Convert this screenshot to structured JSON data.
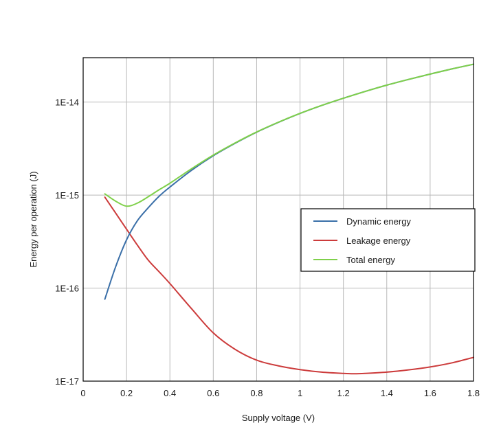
{
  "chart_data": {
    "type": "line",
    "title": "",
    "xlabel": "Supply voltage (V)",
    "ylabel": "Energy per operation (J)",
    "xlim": [
      0,
      1.8
    ],
    "ylim": [
      1e-17,
      3e-14
    ],
    "yscale": "log",
    "grid": true,
    "legend_position": "center-right",
    "x_ticks": [
      {
        "value": 0,
        "label": "0"
      },
      {
        "value": 0.2,
        "label": "0.2"
      },
      {
        "value": 0.4,
        "label": "0.4"
      },
      {
        "value": 0.6,
        "label": "0.6"
      },
      {
        "value": 0.8,
        "label": "0.8"
      },
      {
        "value": 1.0,
        "label": "1"
      },
      {
        "value": 1.2,
        "label": "1.2"
      },
      {
        "value": 1.4,
        "label": "1.4"
      },
      {
        "value": 1.6,
        "label": "1.6"
      },
      {
        "value": 1.8,
        "label": "1.8"
      }
    ],
    "y_ticks": [
      {
        "value": 1e-17,
        "label": "1E-17"
      },
      {
        "value": 1e-16,
        "label": "1E-16"
      },
      {
        "value": 1e-15,
        "label": "1E-15"
      },
      {
        "value": 1e-14,
        "label": "1E-14"
      }
    ],
    "series": [
      {
        "name": "Dynamic energy",
        "color": "#3a6fa8",
        "x": [
          0.1,
          0.15,
          0.2,
          0.25,
          0.3,
          0.35,
          0.4,
          0.5,
          0.6,
          0.7,
          0.8,
          0.9,
          1.0,
          1.1,
          1.2,
          1.3,
          1.4,
          1.5,
          1.6,
          1.7,
          1.8
        ],
        "y": [
          7.6e-17,
          1.7e-16,
          3.3e-16,
          5.3e-16,
          7.3e-16,
          9.7e-16,
          1.22e-15,
          1.85e-15,
          2.65e-15,
          3.6e-15,
          4.75e-15,
          6.05e-15,
          7.55e-15,
          9.2e-15,
          1.1e-14,
          1.3e-14,
          1.52e-14,
          1.75e-14,
          2e-14,
          2.27e-14,
          2.55e-14
        ]
      },
      {
        "name": "Leakage energy",
        "color": "#cc3b3b",
        "x": [
          0.1,
          0.15,
          0.2,
          0.25,
          0.3,
          0.35,
          0.4,
          0.5,
          0.6,
          0.7,
          0.8,
          0.9,
          1.0,
          1.1,
          1.2,
          1.25,
          1.3,
          1.4,
          1.5,
          1.6,
          1.7,
          1.8
        ],
        "y": [
          9.5e-16,
          6.4e-16,
          4.3e-16,
          2.9e-16,
          2e-16,
          1.5e-16,
          1.12e-16,
          6e-17,
          3.3e-17,
          2.2e-17,
          1.68e-17,
          1.46e-17,
          1.33e-17,
          1.25e-17,
          1.21e-17,
          1.2e-17,
          1.21e-17,
          1.25e-17,
          1.32e-17,
          1.42e-17,
          1.57e-17,
          1.8e-17
        ]
      },
      {
        "name": "Total energy",
        "color": "#7fd04a",
        "x": [
          0.1,
          0.15,
          0.2,
          0.25,
          0.3,
          0.35,
          0.4,
          0.5,
          0.6,
          0.7,
          0.8,
          0.9,
          1.0,
          1.1,
          1.2,
          1.3,
          1.4,
          1.5,
          1.6,
          1.7,
          1.8
        ],
        "y": [
          1.03e-15,
          8.6e-16,
          7.6e-16,
          8.2e-16,
          9.6e-16,
          1.14e-15,
          1.34e-15,
          1.92e-15,
          2.69e-15,
          3.63e-15,
          4.77e-15,
          6.07e-15,
          7.56e-15,
          9.21e-15,
          1.1e-14,
          1.3e-14,
          1.52e-14,
          1.75e-14,
          2e-14,
          2.27e-14,
          2.55e-14
        ]
      }
    ]
  }
}
